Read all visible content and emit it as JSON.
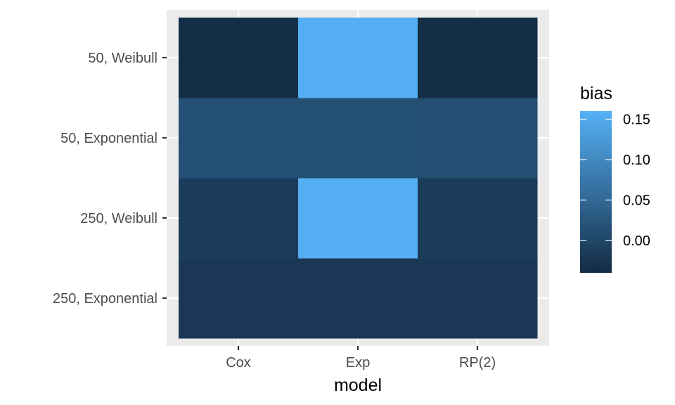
{
  "chart_data": {
    "type": "heatmap",
    "x": [
      "Cox",
      "Exp",
      "RP(2)"
    ],
    "y": [
      "250, Exponential",
      "250, Weibull",
      "50, Exponential",
      "50, Weibull"
    ],
    "values": [
      [
        -0.02,
        -0.02,
        -0.02
      ],
      [
        -0.015,
        0.155,
        -0.015
      ],
      [
        0.015,
        0.015,
        0.012
      ],
      [
        -0.035,
        0.155,
        -0.035
      ]
    ],
    "xlabel": "model",
    "ylabel": "",
    "grid": true,
    "legend": {
      "title": "bias",
      "position": "right",
      "ticks": [
        0.15,
        0.1,
        0.05,
        0.0
      ],
      "tick_labels": [
        "0.15",
        "0.10",
        "0.05",
        "0.00"
      ],
      "range": [
        -0.04,
        0.16
      ]
    },
    "colors": {
      "low": "#132B43",
      "high": "#56B1F7",
      "panel_background": "#EBEBEB",
      "grid": "#FFFFFF"
    }
  }
}
